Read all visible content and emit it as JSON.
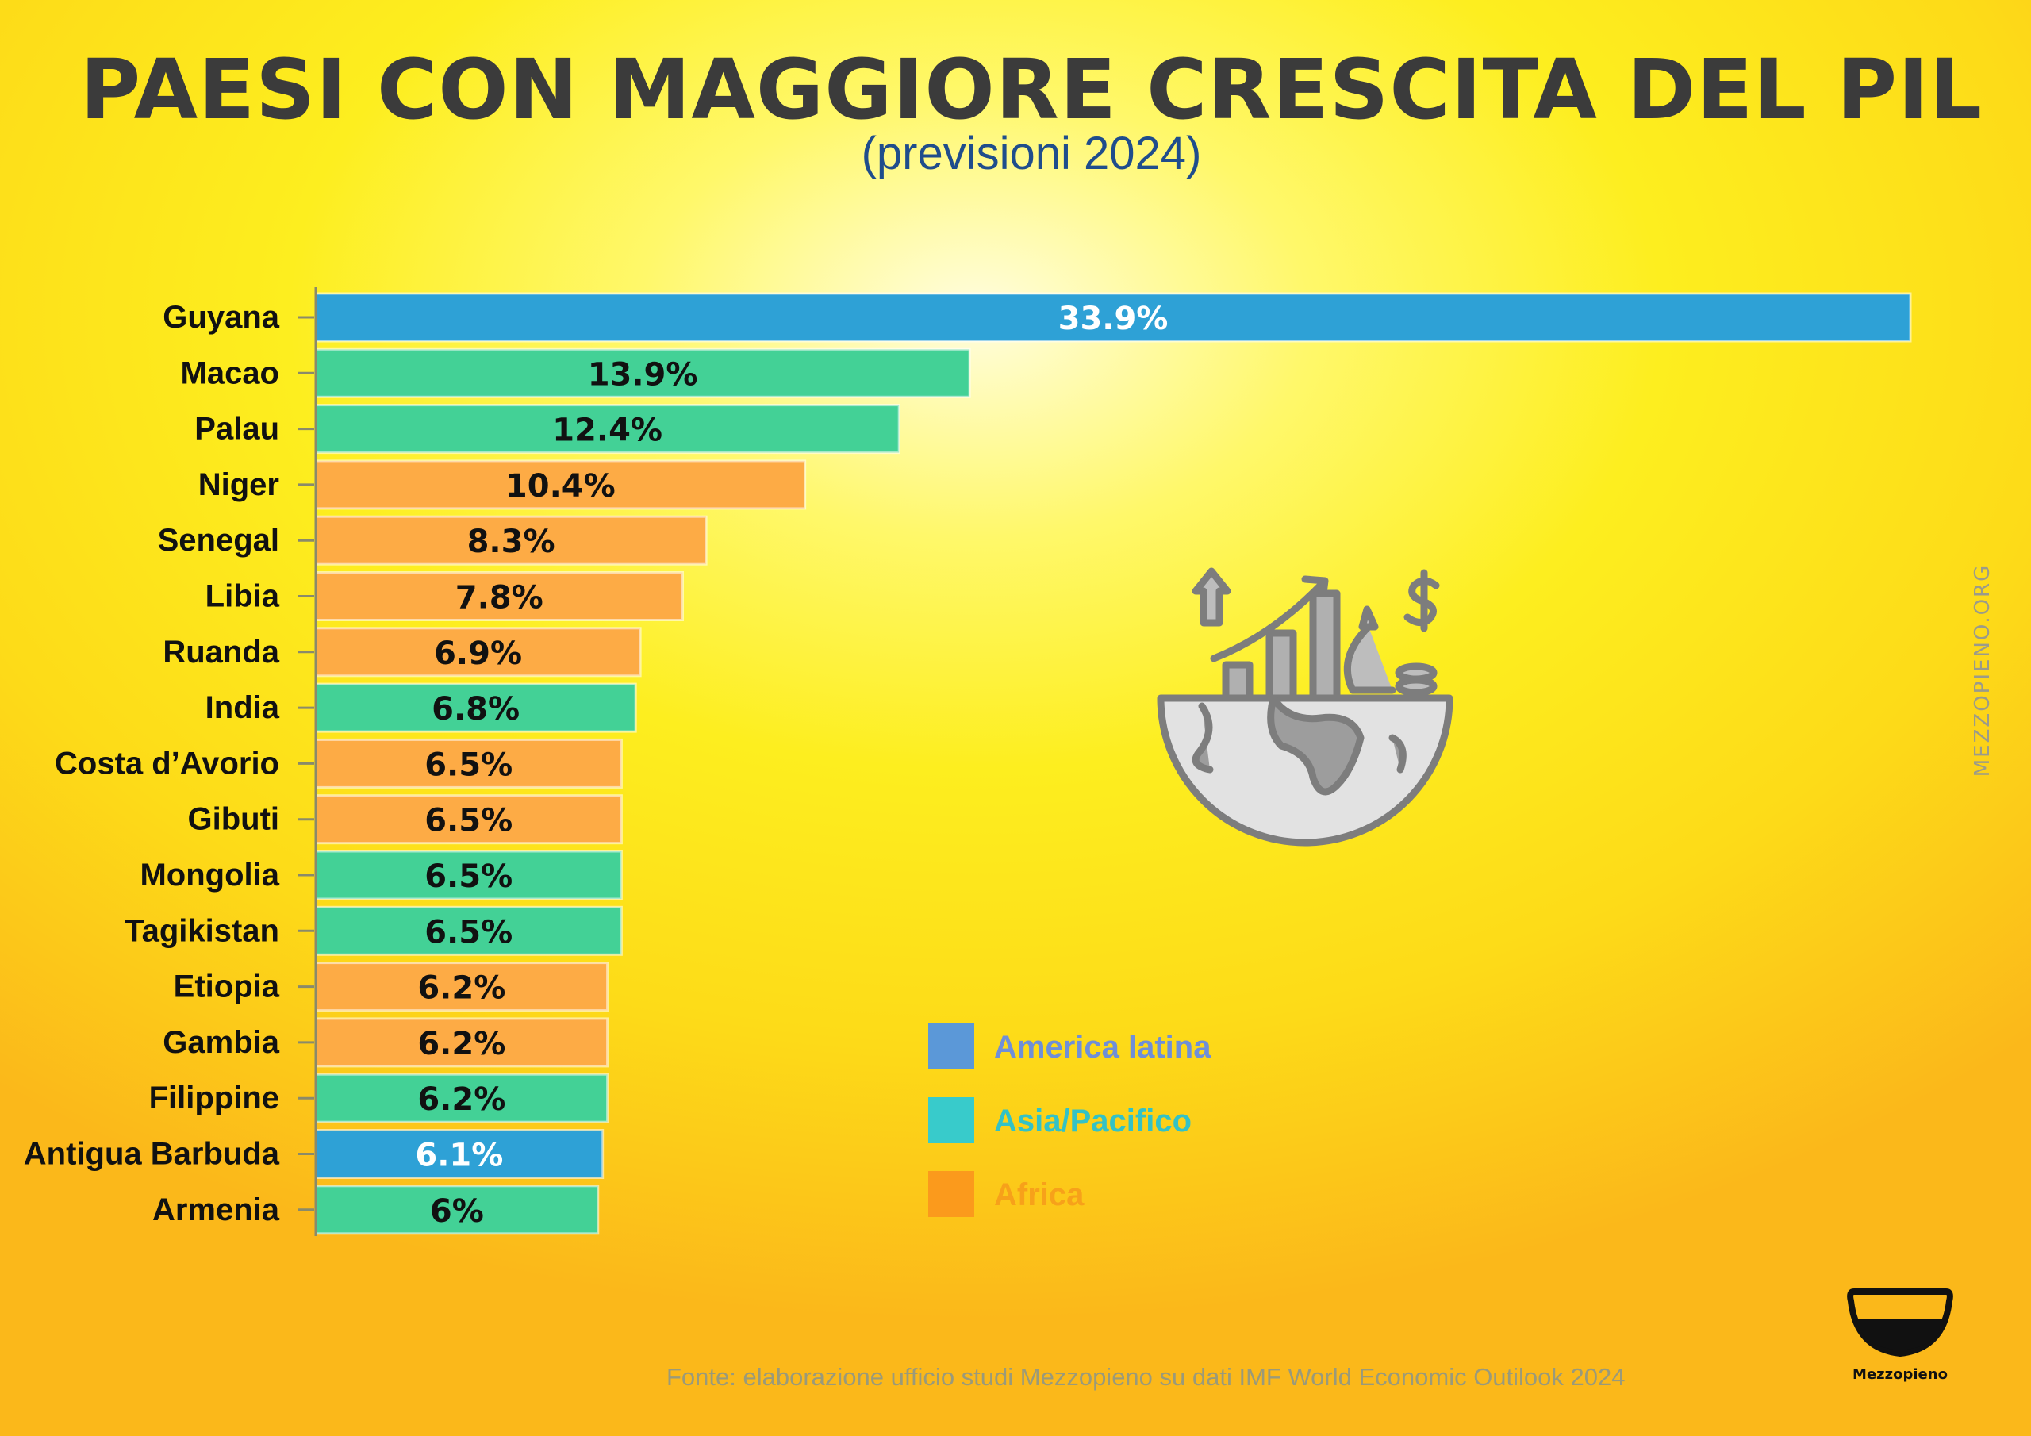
{
  "header": {
    "title": "PAESI CON MAGGIORE CRESCITA DEL PIL",
    "subtitle": "(previsioni 2024)"
  },
  "chart_data": {
    "type": "bar",
    "orientation": "horizontal",
    "title": "PAESI CON MAGGIORE CRESCITA DEL PIL",
    "subtitle": "(previsioni 2024)",
    "xlabel": "",
    "ylabel": "",
    "xlim": [
      0,
      33.9
    ],
    "grid": false,
    "legend_position": "center-right",
    "categories": [
      "Guyana",
      "Macao",
      "Palau",
      "Niger",
      "Senegal",
      "Libia",
      "Ruanda",
      "India",
      "Costa d’Avorio",
      "Gibuti",
      "Mongolia",
      "Tagikistan",
      "Etiopia",
      "Gambia",
      "Filippine",
      "Antigua Barbuda",
      "Armenia"
    ],
    "values": [
      33.9,
      13.9,
      12.4,
      10.4,
      8.3,
      7.8,
      6.9,
      6.8,
      6.5,
      6.5,
      6.5,
      6.5,
      6.2,
      6.2,
      6.2,
      6.1,
      6
    ],
    "value_labels": [
      "33.9%",
      "13.9%",
      "12.4%",
      "10.4%",
      "8.3%",
      "7.8%",
      "6.9%",
      "6.8%",
      "6.5%",
      "6.5%",
      "6.5%",
      "6.5%",
      "6.2%",
      "6.2%",
      "6.2%",
      "6.1%",
      "6%"
    ],
    "regions": [
      "America latina",
      "Asia/Pacifico",
      "Asia/Pacifico",
      "Africa",
      "Africa",
      "Africa",
      "Africa",
      "Asia/Pacifico",
      "Africa",
      "Africa",
      "Asia/Pacifico",
      "Asia/Pacifico",
      "Africa",
      "Africa",
      "Asia/Pacifico",
      "America latina",
      "Asia/Pacifico"
    ],
    "legend": [
      {
        "name": "America latina",
        "swatch": "#5b98d8",
        "text_color": "#6f8fd8"
      },
      {
        "name": "Asia/Pacifico",
        "swatch": "#38cbcb",
        "text_color": "#33c2c6"
      },
      {
        "name": "Africa",
        "swatch": "#fb9a1c",
        "text_color": "#f7a11a"
      }
    ],
    "bar_colors": {
      "America latina": "#2ea1d6",
      "Asia/Pacifico": "#43d196",
      "Africa": "#fdab45"
    },
    "label_colors": {
      "America latina": "#ffffff",
      "Asia/Pacifico": "#111111",
      "Africa": "#111111"
    }
  },
  "footer": {
    "source": "Fonte: elaborazione ufficio studi Mezzopieno su dati IMF World Economic Outilook 2024",
    "watermark": "MEZZOPIENO.ORG",
    "logo_text": "Mezzopieno"
  },
  "icons": {
    "illustration": "global-economic-growth-icon",
    "logo": "half-full-glass-icon"
  }
}
